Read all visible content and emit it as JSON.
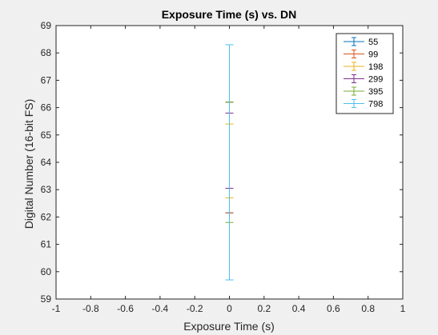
{
  "chart_data": {
    "type": "errorbar",
    "title": "Exposure Time (s) vs. DN",
    "xlabel": "Exposure Time (s)",
    "ylabel": "Digital Number (16-bit FS)",
    "xlim": [
      -1,
      1
    ],
    "ylim": [
      59,
      69
    ],
    "xticks": [
      -1,
      -0.8,
      -0.6,
      -0.4,
      -0.2,
      0,
      0.2,
      0.4,
      0.6,
      0.8,
      1
    ],
    "xtick_labels": [
      "-1",
      "-0.8",
      "-0.6",
      "-0.4",
      "-0.2",
      "0",
      "0.2",
      "0.4",
      "0.6",
      "0.8",
      "1"
    ],
    "yticks": [
      59,
      60,
      61,
      62,
      63,
      64,
      65,
      66,
      67,
      68,
      69
    ],
    "ytick_labels": [
      "59",
      "60",
      "61",
      "62",
      "63",
      "64",
      "65",
      "66",
      "67",
      "68",
      "69"
    ],
    "grid": false,
    "legend_position": "top-right",
    "series": [
      {
        "name": "55",
        "color": "#0072bd",
        "x": 0,
        "y": 64.5,
        "lower": 62.15,
        "upper": 66.2
      },
      {
        "name": "99",
        "color": "#d95319",
        "x": 0,
        "y": 64.5,
        "lower": 62.15,
        "upper": 66.2
      },
      {
        "name": "198",
        "color": "#edb120",
        "x": 0,
        "y": 64.05,
        "lower": 62.7,
        "upper": 65.4
      },
      {
        "name": "299",
        "color": "#7e2f8e",
        "x": 0,
        "y": 64.4,
        "lower": 63.05,
        "upper": 65.8
      },
      {
        "name": "395",
        "color": "#77ac30",
        "x": 0,
        "y": 64.0,
        "lower": 61.8,
        "upper": 66.2
      },
      {
        "name": "798",
        "color": "#4dbeee",
        "x": 0,
        "y": 64.0,
        "lower": 59.7,
        "upper": 68.3
      }
    ]
  }
}
